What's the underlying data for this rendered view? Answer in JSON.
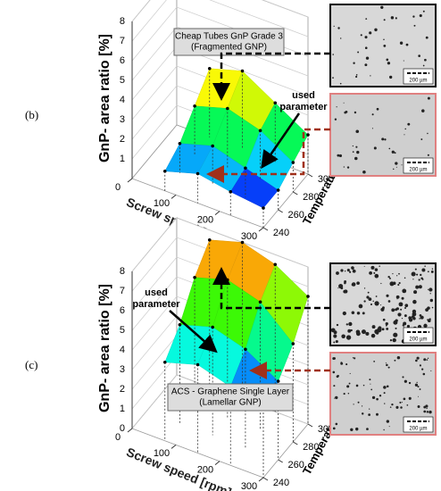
{
  "panels": [
    {
      "label": "(b)",
      "z_axis_title": "GnP- area ratio [%]",
      "x_axis_title": "Screw speed [rpm]",
      "y_axis_title": "Temperature [°C]",
      "z_ticks": [
        "1",
        "2",
        "3",
        "4",
        "5",
        "6",
        "7",
        "8"
      ],
      "x_ticks": [
        "0",
        "100",
        "200",
        "300"
      ],
      "y_ticks": [
        "240",
        "260",
        "280",
        "300"
      ],
      "annotation": [
        "Cheap Tubes GnP Grade 3",
        "(Fragmented GNP)"
      ],
      "used_parameter": [
        "used",
        "parameter"
      ],
      "surface": [
        [
          1,
          1.5,
          1.2,
          1
        ],
        [
          1.5,
          2,
          1.5,
          1
        ],
        [
          2.5,
          3,
          2.5,
          1.5
        ],
        [
          3.5,
          4,
          3,
          2
        ]
      ],
      "micrographs": [
        {
          "scale": "200 µm"
        },
        {
          "scale": "200 µm"
        }
      ]
    },
    {
      "label": "(c)",
      "z_axis_title": "GnP- area ratio [%]",
      "x_axis_title": "Screw speed [rpm]",
      "y_axis_title": "Temperature [°C]",
      "z_ticks": [
        "0",
        "1",
        "2",
        "3",
        "4",
        "5",
        "6",
        "7",
        "8"
      ],
      "x_ticks": [
        "0",
        "100",
        "200",
        "300"
      ],
      "y_ticks": [
        "240",
        "260",
        "280",
        "300"
      ],
      "annotation": [
        "ACS - Graphene Single Layer",
        "(Lamellar GNP)"
      ],
      "used_parameter": [
        "used",
        "parameter"
      ],
      "surface": [
        [
          4,
          4.5,
          4,
          3.5
        ],
        [
          5,
          5.5,
          5,
          4
        ],
        [
          6.5,
          7,
          6.5,
          5
        ],
        [
          7.5,
          8,
          7.5,
          6.5
        ]
      ],
      "micrographs": [
        {
          "scale": "200 µm"
        },
        {
          "scale": "200 µm"
        }
      ]
    }
  ]
}
